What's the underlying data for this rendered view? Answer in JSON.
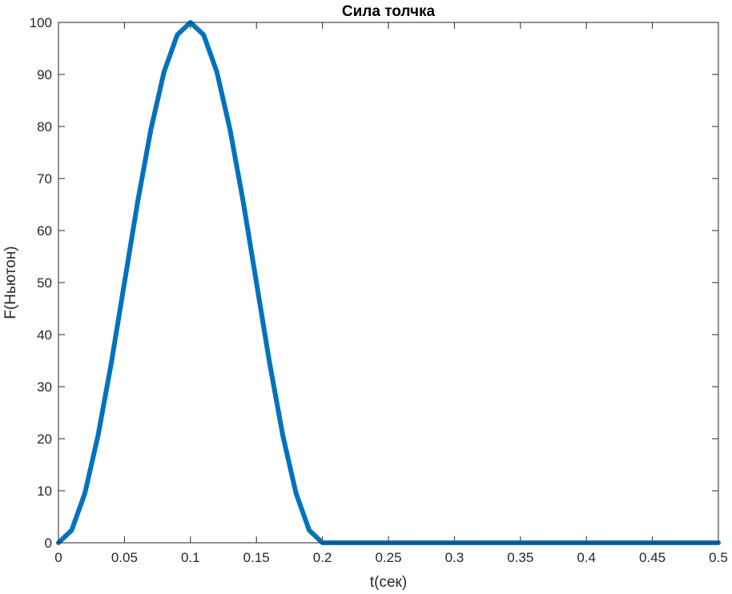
{
  "chart_data": {
    "type": "line",
    "title": "Сила толчка",
    "xlabel": "t(сек)",
    "ylabel": "F(Ньютон)",
    "xlim": [
      0,
      0.5
    ],
    "ylim": [
      0,
      100
    ],
    "x_ticks": [
      0,
      0.05,
      0.1,
      0.15,
      0.2,
      0.25,
      0.3,
      0.35,
      0.4,
      0.45,
      0.5
    ],
    "x_tick_labels": [
      "0",
      "0.05",
      "0.1",
      "0.15",
      "0.2",
      "0.25",
      "0.3",
      "0.35",
      "0.4",
      "0.45",
      "0.5"
    ],
    "y_ticks": [
      0,
      10,
      20,
      30,
      40,
      50,
      60,
      70,
      80,
      90,
      100
    ],
    "y_tick_labels": [
      "0",
      "10",
      "20",
      "30",
      "40",
      "50",
      "60",
      "70",
      "80",
      "90",
      "100"
    ],
    "grid": false,
    "series": [
      {
        "color": "#0072BD",
        "x": [
          0,
          0.01,
          0.02,
          0.03,
          0.04,
          0.05,
          0.06,
          0.07,
          0.08,
          0.09,
          0.1,
          0.11,
          0.12,
          0.13,
          0.14,
          0.15,
          0.16,
          0.17,
          0.18,
          0.19,
          0.2,
          0.25,
          0.3,
          0.35,
          0.4,
          0.45,
          0.5
        ],
        "y": [
          0,
          2.4,
          9.5,
          20.6,
          34.5,
          50,
          65.5,
          79.4,
          90.5,
          97.6,
          100,
          97.6,
          90.5,
          79.4,
          65.5,
          50,
          34.5,
          20.6,
          9.5,
          2.4,
          0,
          0,
          0,
          0,
          0,
          0,
          0
        ]
      }
    ]
  }
}
